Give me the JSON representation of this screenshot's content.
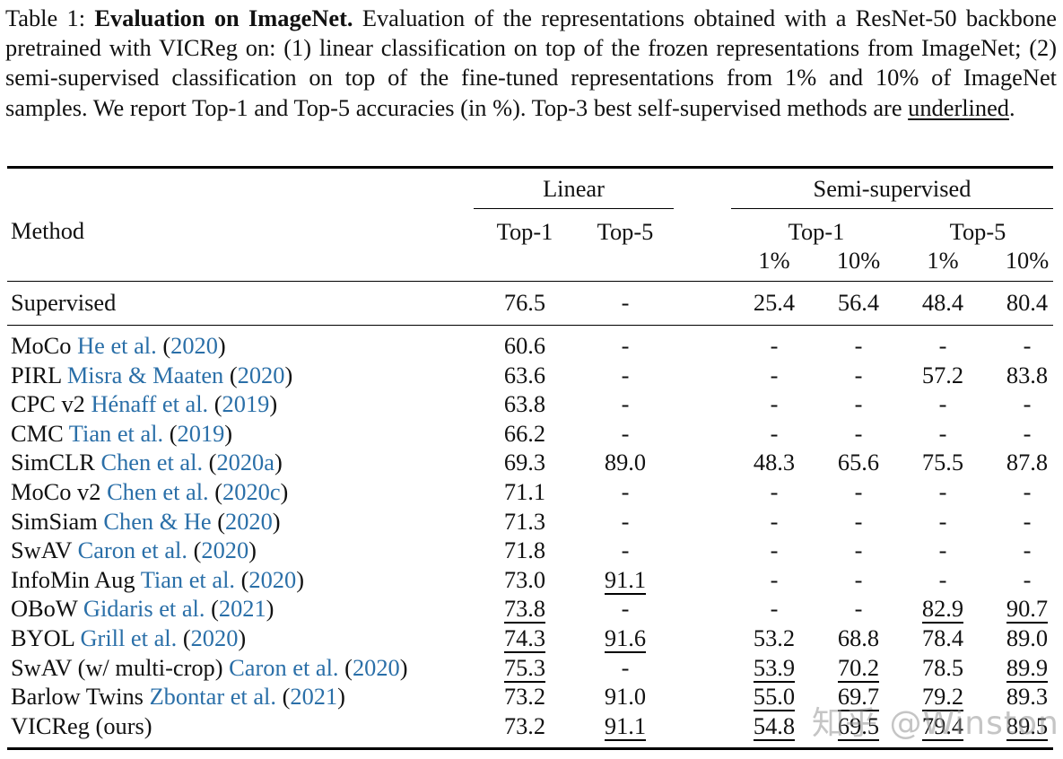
{
  "caption": {
    "label": "Table 1:",
    "title": "Evaluation on ImageNet.",
    "body": " Evaluation of the representations obtained with a ResNet-50 backbone pretrained with VICReg on: (1) linear classification on top of the frozen representations from ImageNet; (2) semi-supervised classification on top of the fine-tuned representations from 1% and 10% of ImageNet samples.  We report Top-1 and Top-5 accuracies (in %).  Top-3 best self-supervised methods are ",
    "underlined_word": "underlined",
    "end": "."
  },
  "header": {
    "method": "Method",
    "linear": "Linear",
    "semi": "Semi-supervised",
    "top1": "Top-1",
    "top5": "Top-5",
    "semi_top1": "Top-1",
    "semi_top5": "Top-5",
    "pct1a": "1%",
    "pct10a": "10%",
    "pct1b": "1%",
    "pct10b": "10%"
  },
  "supervised": {
    "name": "Supervised",
    "values": [
      "76.5",
      "-",
      "25.4",
      "56.4",
      "48.4",
      "80.4"
    ]
  },
  "rows": [
    {
      "name": "MoCo",
      "cite": "He et al.",
      "year": "2020",
      "values": [
        "60.6",
        "-",
        "-",
        "-",
        "-",
        "-"
      ],
      "underline": [
        0,
        0,
        0,
        0,
        0,
        0
      ]
    },
    {
      "name": "PIRL",
      "cite": "Misra & Maaten",
      "year": "2020",
      "values": [
        "63.6",
        "-",
        "-",
        "-",
        "57.2",
        "83.8"
      ],
      "underline": [
        0,
        0,
        0,
        0,
        0,
        0
      ]
    },
    {
      "name": "CPC v2",
      "cite": "Hénaff et al.",
      "year": "2019",
      "values": [
        "63.8",
        "-",
        "-",
        "-",
        "-",
        "-"
      ],
      "underline": [
        0,
        0,
        0,
        0,
        0,
        0
      ]
    },
    {
      "name": "CMC",
      "cite": "Tian et al.",
      "year": "2019",
      "values": [
        "66.2",
        "-",
        "-",
        "-",
        "-",
        "-"
      ],
      "underline": [
        0,
        0,
        0,
        0,
        0,
        0
      ]
    },
    {
      "name": "SimCLR",
      "cite": "Chen et al.",
      "year": "2020a",
      "values": [
        "69.3",
        "89.0",
        "48.3",
        "65.6",
        "75.5",
        "87.8"
      ],
      "underline": [
        0,
        0,
        0,
        0,
        0,
        0
      ]
    },
    {
      "name": "MoCo v2",
      "cite": "Chen et al.",
      "year": "2020c",
      "values": [
        "71.1",
        "-",
        "-",
        "-",
        "-",
        "-"
      ],
      "underline": [
        0,
        0,
        0,
        0,
        0,
        0
      ]
    },
    {
      "name": "SimSiam",
      "cite": "Chen & He",
      "year": "2020",
      "values": [
        "71.3",
        "-",
        "-",
        "-",
        "-",
        "-"
      ],
      "underline": [
        0,
        0,
        0,
        0,
        0,
        0
      ]
    },
    {
      "name": "SwAV",
      "cite": "Caron et al.",
      "year": "2020",
      "values": [
        "71.8",
        "-",
        "-",
        "-",
        "-",
        "-"
      ],
      "underline": [
        0,
        0,
        0,
        0,
        0,
        0
      ]
    },
    {
      "name": "InfoMin Aug",
      "cite": "Tian et al.",
      "year": "2020",
      "values": [
        "73.0",
        "91.1",
        "-",
        "-",
        "-",
        "-"
      ],
      "underline": [
        0,
        1,
        0,
        0,
        0,
        0
      ]
    },
    {
      "name": "OBoW",
      "cite": "Gidaris et al.",
      "year": "2021",
      "values": [
        "73.8",
        "-",
        "-",
        "-",
        "82.9",
        "90.7"
      ],
      "underline": [
        1,
        0,
        0,
        0,
        1,
        1
      ]
    },
    {
      "name": "BYOL",
      "cite": "Grill et al.",
      "year": "2020",
      "values": [
        "74.3",
        "91.6",
        "53.2",
        "68.8",
        "78.4",
        "89.0"
      ],
      "underline": [
        1,
        1,
        0,
        0,
        0,
        0
      ]
    },
    {
      "name": "SwAV (w/ multi-crop)",
      "cite": "Caron et al.",
      "year": "2020",
      "values": [
        "75.3",
        "-",
        "53.9",
        "70.2",
        "78.5",
        "89.9"
      ],
      "underline": [
        1,
        0,
        1,
        1,
        0,
        1
      ]
    },
    {
      "name": "Barlow Twins",
      "cite": "Zbontar et al.",
      "year": "2021",
      "values": [
        "73.2",
        "91.0",
        "55.0",
        "69.7",
        "79.2",
        "89.3"
      ],
      "underline": [
        0,
        0,
        1,
        1,
        1,
        0
      ]
    },
    {
      "name": "VICReg (ours)",
      "cite": "",
      "year": "",
      "values": [
        "73.2",
        "91.1",
        "54.8",
        "69.5",
        "79.4",
        "89.5"
      ],
      "underline": [
        0,
        1,
        1,
        1,
        1,
        1
      ]
    }
  ],
  "watermark": "知乎 @Winston",
  "colors": {
    "citation": "#2a6fa8",
    "text": "#111111"
  }
}
